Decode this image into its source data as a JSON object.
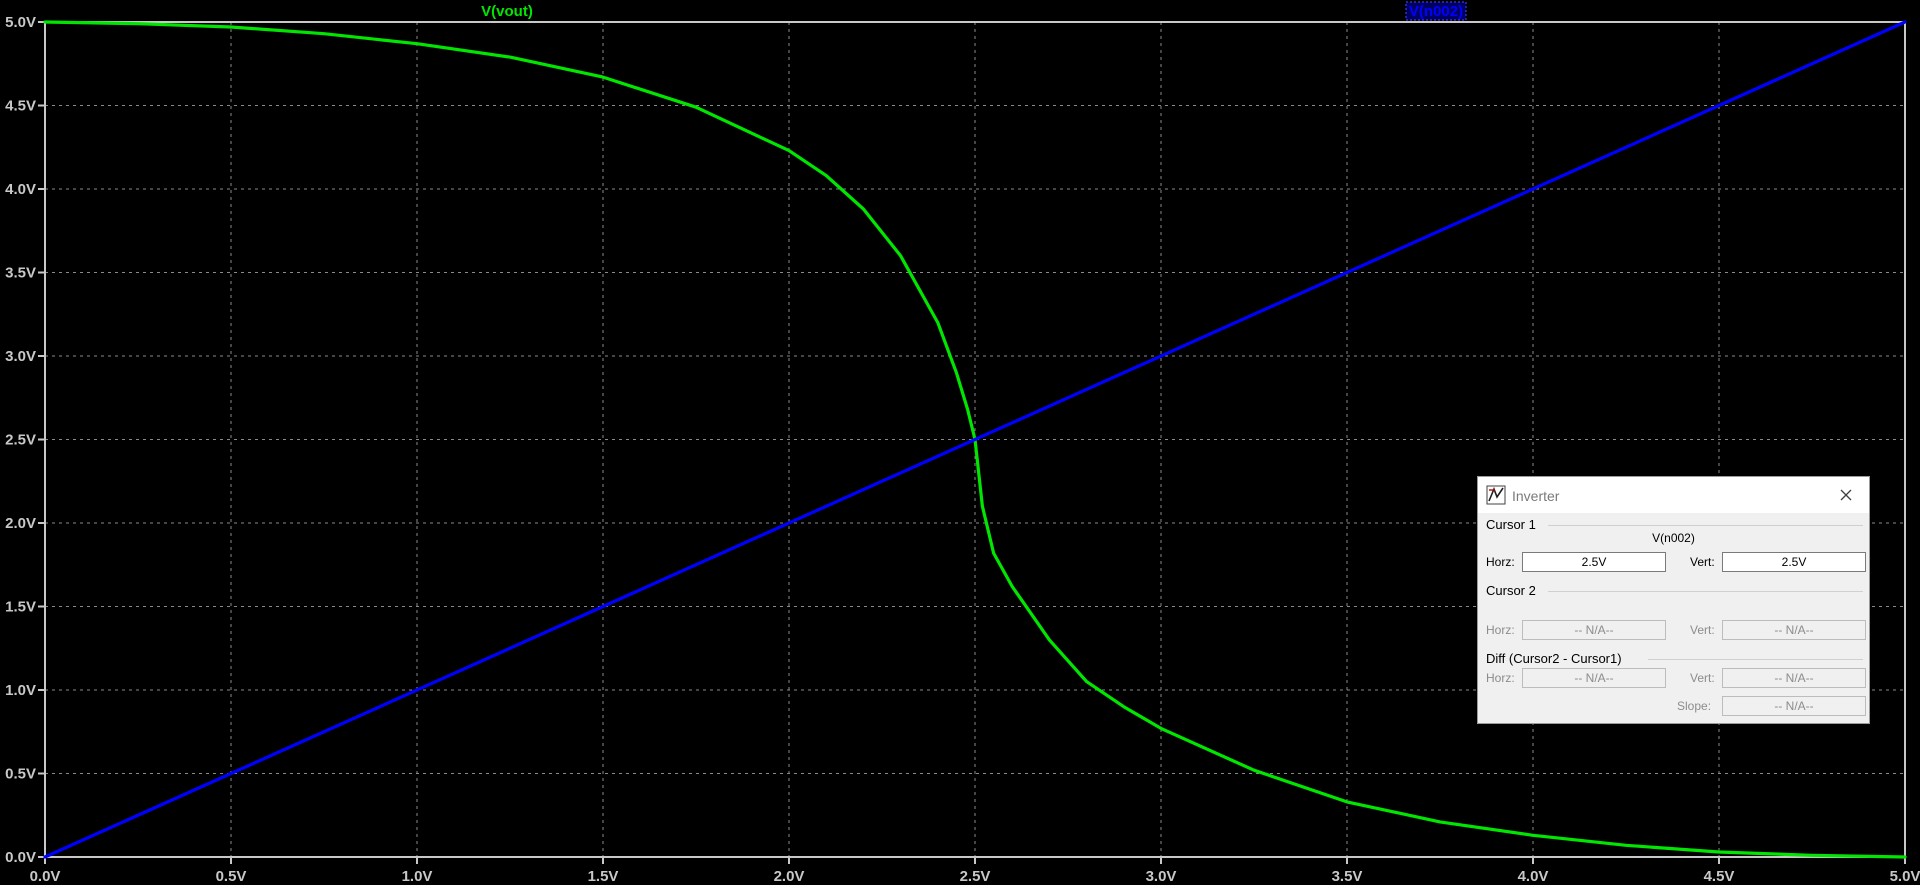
{
  "chart_data": {
    "type": "line",
    "xlim": [
      0,
      5
    ],
    "ylim": [
      0,
      5
    ],
    "x_ticks": [
      "0.0V",
      "0.5V",
      "1.0V",
      "1.5V",
      "2.0V",
      "2.5V",
      "3.0V",
      "3.5V",
      "4.0V",
      "4.5V",
      "5.0V"
    ],
    "y_ticks": [
      "0.0V",
      "0.5V",
      "1.0V",
      "1.5V",
      "2.0V",
      "2.5V",
      "3.0V",
      "3.5V",
      "4.0V",
      "4.5V",
      "5.0V"
    ],
    "grid": true,
    "legend": "top",
    "series": [
      {
        "name": "V(vout)",
        "color": "#00e600",
        "x": [
          0,
          0.25,
          0.5,
          0.75,
          1.0,
          1.25,
          1.5,
          1.75,
          2.0,
          2.1,
          2.2,
          2.3,
          2.4,
          2.45,
          2.48,
          2.5,
          2.52,
          2.55,
          2.6,
          2.7,
          2.8,
          2.9,
          3.0,
          3.25,
          3.5,
          3.75,
          4.0,
          4.25,
          4.5,
          4.75,
          5.0
        ],
        "y": [
          5.0,
          4.99,
          4.97,
          4.93,
          4.87,
          4.79,
          4.67,
          4.49,
          4.23,
          4.08,
          3.88,
          3.6,
          3.2,
          2.9,
          2.68,
          2.5,
          2.1,
          1.82,
          1.62,
          1.3,
          1.05,
          0.9,
          0.77,
          0.52,
          0.33,
          0.21,
          0.13,
          0.07,
          0.03,
          0.01,
          0.0
        ]
      },
      {
        "name": "V(n002)",
        "color": "#0000ff",
        "x": [
          0,
          5
        ],
        "y": [
          0,
          5
        ]
      }
    ]
  },
  "cursor_panel": {
    "title": "Inverter",
    "cursor1_label": "Cursor 1",
    "cursor1_trace": "V(n002)",
    "horz_label": "Horz:",
    "vert_label": "Vert:",
    "cursor1_horz": "2.5V",
    "cursor1_vert": "2.5V",
    "cursor2_label": "Cursor 2",
    "cursor2_horz": "-- N/A--",
    "cursor2_vert": "-- N/A--",
    "diff_label": "Diff (Cursor2 - Cursor1)",
    "diff_horz": "-- N/A--",
    "diff_vert": "-- N/A--",
    "slope_label": "Slope:",
    "diff_slope": "-- N/A--"
  }
}
